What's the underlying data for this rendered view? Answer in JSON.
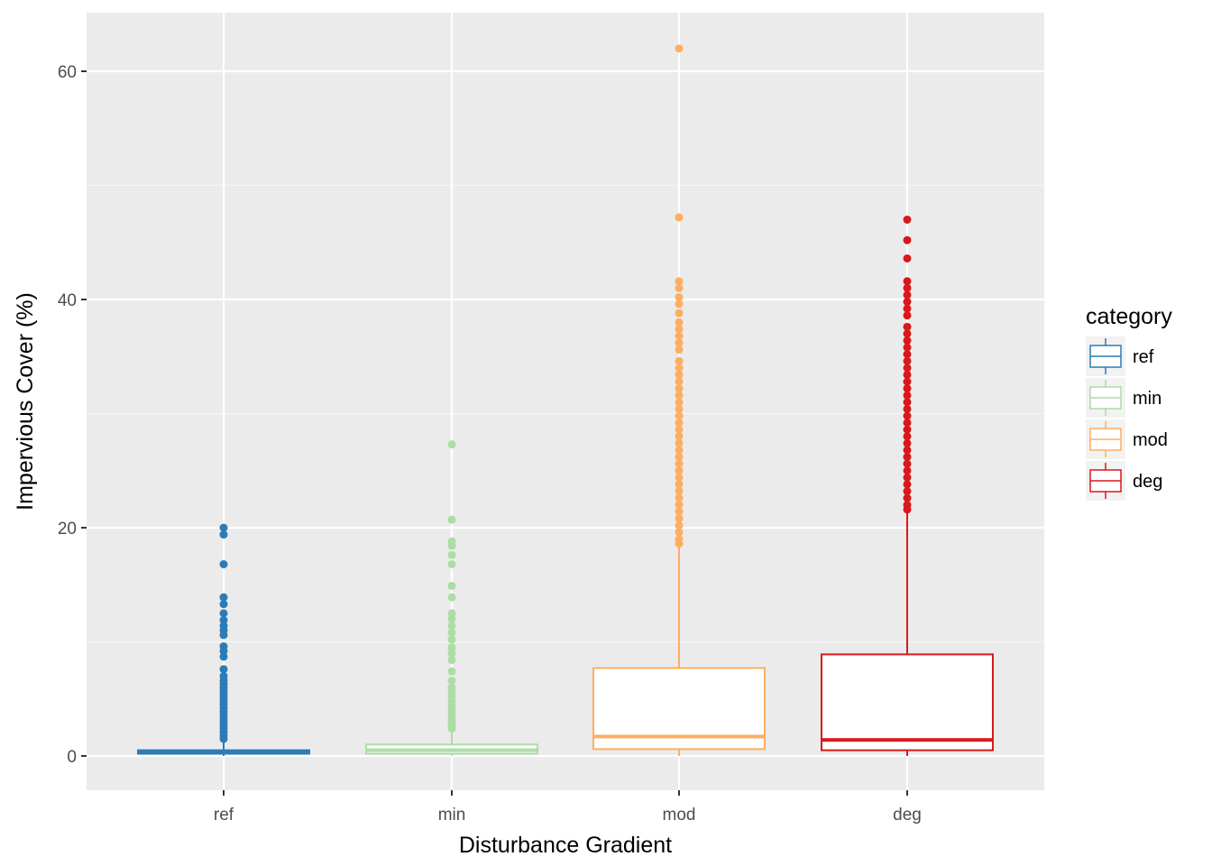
{
  "chart_data": {
    "type": "boxplot",
    "xlabel": "Disturbance Gradient",
    "ylabel": "Impervious Cover (%)",
    "ylim": [
      -3,
      65
    ],
    "yticks": [
      0,
      20,
      40,
      60
    ],
    "grid": true,
    "legend": {
      "title": "category",
      "placement": "right",
      "entries": [
        "ref",
        "min",
        "mod",
        "deg"
      ]
    },
    "categories": [
      "ref",
      "min",
      "mod",
      "deg"
    ],
    "series": [
      {
        "name": "ref",
        "color": "#2c7bb6",
        "q1": 0.2,
        "median": 0.3,
        "q3": 0.5,
        "whisker_low": 0.0,
        "whisker_high": 1.2,
        "outliers": [
          20.0,
          19.4,
          16.8,
          13.9,
          13.3,
          12.5,
          11.9,
          11.4,
          11.0,
          10.6,
          9.6,
          9.2,
          8.7,
          7.6,
          7.0,
          6.6,
          6.3,
          6.0,
          5.7,
          5.4,
          5.1,
          4.8,
          4.5,
          4.2,
          3.9,
          3.6,
          3.3,
          3.0,
          2.7,
          2.4,
          2.1,
          1.8,
          1.5
        ]
      },
      {
        "name": "min",
        "color": "#abdda4",
        "q1": 0.2,
        "median": 0.5,
        "q3": 1.0,
        "whisker_low": 0.0,
        "whisker_high": 2.1,
        "outliers": [
          27.3,
          20.7,
          18.8,
          18.4,
          17.6,
          16.8,
          14.9,
          13.9,
          12.5,
          12.0,
          11.4,
          10.8,
          10.2,
          9.5,
          9.0,
          8.4,
          7.4,
          6.6,
          6.0,
          5.6,
          5.2,
          4.8,
          4.4,
          4.0,
          3.6,
          3.3,
          3.0,
          2.7,
          2.4
        ]
      },
      {
        "name": "mod",
        "color": "#fdae61",
        "q1": 0.6,
        "median": 1.7,
        "q3": 7.7,
        "whisker_low": 0.0,
        "whisker_high": 18.4,
        "outliers": [
          62.0,
          47.2,
          41.6,
          41.0,
          40.2,
          39.6,
          38.8,
          38.0,
          37.4,
          36.8,
          36.2,
          35.6,
          34.6,
          34.0,
          33.4,
          32.8,
          32.2,
          31.6,
          31.0,
          30.4,
          29.8,
          29.2,
          28.6,
          28.0,
          27.4,
          26.8,
          26.2,
          25.6,
          25.0,
          24.4,
          23.8,
          23.2,
          22.6,
          22.0,
          21.4,
          20.8,
          20.2,
          19.6,
          19.0,
          18.6
        ]
      },
      {
        "name": "deg",
        "color": "#d7191c",
        "q1": 0.5,
        "median": 1.4,
        "q3": 8.9,
        "whisker_low": 0.0,
        "whisker_high": 21.4,
        "outliers": [
          47.0,
          45.2,
          43.6,
          41.6,
          41.0,
          40.4,
          39.8,
          39.2,
          38.6,
          37.6,
          37.0,
          36.4,
          35.8,
          35.2,
          34.6,
          34.0,
          33.4,
          32.8,
          32.2,
          31.6,
          31.0,
          30.4,
          29.8,
          29.2,
          28.6,
          28.0,
          27.4,
          26.8,
          26.2,
          25.6,
          25.0,
          24.4,
          23.8,
          23.2,
          22.6,
          22.0,
          21.6
        ]
      }
    ]
  }
}
